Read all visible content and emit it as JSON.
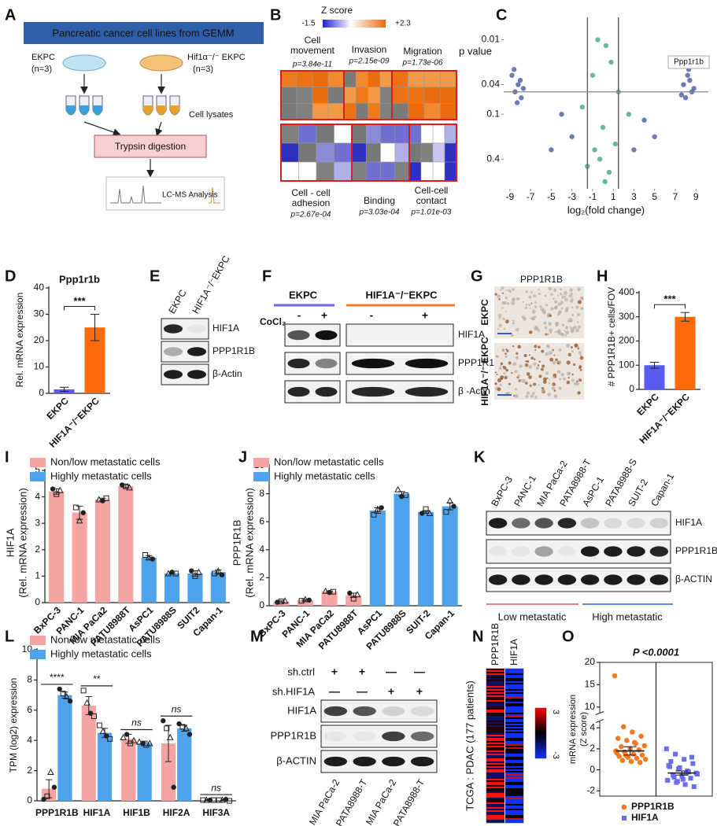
{
  "letters": [
    "A",
    "B",
    "C",
    "D",
    "E",
    "F",
    "G",
    "H",
    "I",
    "J",
    "K",
    "L",
    "M",
    "N",
    "O"
  ],
  "panel_a": {
    "title": "Pancreatic cancer cell lines from GEMM",
    "group1": "EKPC",
    "n1": "(n=3)",
    "group2": "Hif1α⁻/⁻ EKPC",
    "n2": "(n=3)",
    "step1": "Cell lysates",
    "step2": "Trypsin digestion",
    "step3": "LC-MS Analysis"
  },
  "panel_b": {
    "scale_title": "Z score",
    "scale_min": "-1.5",
    "scale_max": "+2.3",
    "terms": [
      {
        "lines": [
          "Cell",
          "movement"
        ],
        "p": "p=3.84e-11"
      },
      {
        "lines": [
          "Invasion"
        ],
        "p": "p=2.15e-09"
      },
      {
        "lines": [
          "Migration"
        ],
        "p": "p=1.73e-06"
      },
      {
        "lines": [
          "Cell - cell",
          "adhesion"
        ],
        "p": "p=2.67e-04"
      },
      {
        "lines": [
          "Binding"
        ],
        "p": "p=3.03e-04"
      },
      {
        "lines": [
          "Cell-cell",
          "contact"
        ],
        "p": "p=1.01e-03"
      }
    ]
  },
  "panel_e": {
    "lanes": [
      "EKPC",
      "HIF1A⁻/⁻EKPC"
    ],
    "bands": [
      "HIF1A",
      "PPP1R1B",
      "β-Actin"
    ]
  },
  "panel_f": {
    "groups": [
      "EKPC",
      "HIF1A⁻/⁻EKPC"
    ],
    "treatment": "CoCl₂",
    "signs": [
      "-",
      "+",
      "-",
      "+"
    ],
    "bands": [
      "HIF1A",
      "PPP1R1B",
      "β -Actin"
    ]
  },
  "panel_g": {
    "title": "PPP1R1B",
    "rows": [
      "EKPC",
      "HIF1A⁻/⁻ EKPC"
    ]
  },
  "panel_k": {
    "lanes": [
      "BxPC-3",
      "PANC-1",
      "MIA PaCa-2",
      "PATA8988-T",
      "AsPC-1",
      "PATA8988-S",
      "SUIT-2",
      "Capan-1"
    ],
    "bands": [
      "HIF1A",
      "PPP1R1B",
      "β-ACTIN"
    ],
    "groups": [
      "Low metastatic",
      "High metastatic"
    ]
  },
  "panel_m": {
    "conditions": [
      {
        "name": "sh.ctrl",
        "signs": [
          "+",
          "+",
          "—",
          "—"
        ]
      },
      {
        "name": "sh.HIF1A",
        "signs": [
          "—",
          "—",
          "+",
          "+"
        ]
      }
    ],
    "bands": [
      "HIF1A",
      "PPP1R1B",
      "β-ACTIN"
    ],
    "lanes": [
      "MIA PaCa-2",
      "PATA8988-T",
      "MIA PaCa-2",
      "PATA8988-T"
    ]
  },
  "panel_n": {
    "columns": [
      "PPP1R1B",
      "HIF1A"
    ],
    "label": "TCGA : PDAC (177 patients)",
    "scale_max": "3",
    "scale_min": "-3"
  },
  "chart_data": [
    {
      "type": "scatter",
      "ylabel": "p value",
      "xlabel": "log₂(fold change)",
      "color": "#3b4f9a",
      "log_y": true,
      "y_inverted": true,
      "x": [
        -8.8,
        -8.5,
        -8.2,
        -7.9,
        -8.6,
        -8.0,
        -8.3,
        -7.7,
        7.8,
        8.2,
        8.6,
        8.0,
        8.4,
        8.8,
        7.6,
        8.3,
        -0.5,
        0.3,
        0.8,
        -1,
        1.5,
        -2,
        2.5,
        -3,
        3,
        0,
        -0.3,
        0.6,
        -1.5,
        1.2,
        -4,
        4,
        0.2,
        -0.8,
        5,
        -5
      ],
      "y": [
        0.03,
        0.05,
        0.04,
        0.06,
        0.025,
        0.035,
        0.07,
        0.045,
        0.04,
        0.03,
        0.05,
        0.06,
        0.035,
        0.045,
        0.055,
        0.025,
        0.01,
        0.012,
        0.02,
        0.03,
        0.05,
        0.08,
        0.1,
        0.2,
        0.3,
        0.15,
        0.4,
        0.6,
        0.5,
        0.25,
        0.1,
        0.12,
        0.8,
        0.3,
        0.2,
        0.3
      ],
      "xlim": [
        -9.6,
        10.2
      ],
      "xticks": [
        -9,
        -7,
        -5,
        -3,
        -1,
        1,
        3,
        5,
        7,
        9
      ],
      "ylim": [
        0.005,
        1
      ],
      "yticks": [
        0.01,
        0.04,
        0.1,
        0.4
      ],
      "vlines": [
        -1.5,
        1.5
      ],
      "hline": 0.05,
      "annotation": {
        "text": "Ppp1r1b",
        "x": 8.3,
        "y": 0.02
      }
    },
    {
      "type": "bar",
      "title": "Ppp1r1b",
      "ylabel": "Rel. mRNA expression",
      "categories": [
        "EKPC",
        "HIF1A⁻/⁻EKPC"
      ],
      "values": [
        1.5,
        25
      ],
      "errors": [
        0.8,
        5
      ],
      "colors": [
        "#5b5bf2",
        "#ff6a0d"
      ],
      "ylim": [
        0,
        40
      ],
      "yticks": [
        0,
        10,
        20,
        30,
        40
      ],
      "annotation": "***"
    },
    {
      "type": "bar",
      "ylabel": "# PPP1R1B+ cells/FOV",
      "categories": [
        "EKPC",
        "HIF1A⁻/⁻EKPC"
      ],
      "values": [
        100,
        300
      ],
      "errors": [
        12,
        18
      ],
      "colors": [
        "#5b5bf2",
        "#ff6a0d"
      ],
      "ylim": [
        0,
        400
      ],
      "yticks": [
        0,
        100,
        200,
        300,
        400
      ],
      "annotation": "***"
    },
    {
      "type": "bar",
      "ylabel": [
        "HIF1A",
        "(Rel. mRNA expression)"
      ],
      "categories": [
        "BxPC-3",
        "PANC-1",
        "MIA PaCa2",
        "PATU8988T",
        "AsPC1",
        "PATU8988S",
        "SUIT2",
        "Capan-1"
      ],
      "series": [
        {
          "name": "Non/low metastatic cells",
          "color": "#f5a3a3",
          "values": [
            4.2,
            3.4,
            3.9,
            4.4,
            null,
            null,
            null,
            null
          ],
          "errors": [
            0.1,
            0.25,
            0.05,
            0.05,
            null,
            null,
            null,
            null
          ],
          "points": [
            [
              4.3,
              4.1,
              4.25
            ],
            [
              3.6,
              3.1,
              3.4
            ],
            [
              3.9,
              3.85,
              3.95
            ],
            [
              4.45,
              4.4,
              4.35
            ],
            null,
            null,
            null,
            null
          ]
        },
        {
          "name": "Highly metastatic cells",
          "color": "#4fa3ea",
          "values": [
            null,
            null,
            null,
            null,
            1.7,
            1.1,
            1.1,
            1.15
          ],
          "errors": [
            null,
            null,
            null,
            null,
            0.08,
            0.03,
            0.1,
            0.08
          ],
          "points": [
            null,
            null,
            null,
            null,
            [
              1.8,
              1.7,
              1.65
            ],
            [
              1.1,
              1.15,
              1.1
            ],
            [
              1.2,
              1.0,
              1.15
            ],
            [
              1.1,
              1.2,
              1.05
            ]
          ]
        }
      ],
      "ylim": [
        0,
        5
      ],
      "yticks": [
        0,
        1,
        2,
        3,
        4,
        5
      ]
    },
    {
      "type": "bar",
      "ylabel": [
        "PPP1R1B",
        "(Rel. mRNA expression)"
      ],
      "categories": [
        "BxPC-3",
        "PANC-1",
        "MIA PaCa2",
        "PATU8988T",
        "AsPC1",
        "PATU8988S",
        "SUIT-2",
        "Capan-1"
      ],
      "series": [
        {
          "name": "Non/low metastatic cells",
          "color": "#f5a3a3",
          "values": [
            0.3,
            0.4,
            1.0,
            0.75,
            null,
            null,
            null,
            null
          ],
          "errors": [
            0.05,
            0.05,
            0.05,
            0.15,
            null,
            null,
            null,
            null
          ],
          "points": [
            [
              0.25,
              0.3,
              0.35
            ],
            [
              0.35,
              0.45,
              0.4
            ],
            [
              1.05,
              0.95,
              1.0
            ],
            [
              0.9,
              0.5,
              0.8
            ],
            null,
            null,
            null,
            null
          ]
        },
        {
          "name": "Highly metastatic cells",
          "color": "#4fa3ea",
          "values": [
            null,
            null,
            null,
            null,
            6.8,
            8.0,
            6.7,
            7.1
          ],
          "errors": [
            null,
            null,
            null,
            null,
            0.2,
            0.15,
            0.1,
            0.25
          ],
          "points": [
            null,
            null,
            null,
            null,
            [
              6.5,
              6.9,
              7.0
            ],
            [
              8.3,
              7.8,
              7.9
            ],
            [
              6.6,
              6.9,
              6.6
            ],
            [
              6.7,
              7.5,
              7.1
            ]
          ]
        }
      ],
      "ylim": [
        0,
        10
      ],
      "yticks": [
        0,
        2,
        4,
        6,
        8,
        10
      ]
    },
    {
      "type": "bar",
      "ylabel": "TPM (log2) expression",
      "categories": [
        "PPP1R1B",
        "HIF1A",
        "HIF1B",
        "HIF2A",
        "HIF3A"
      ],
      "series": [
        {
          "name": "Non/low metastatic cells",
          "color": "#f5a3a3",
          "values": [
            0.8,
            6.3,
            4.1,
            3.8,
            0.05
          ],
          "errors": [
            0.6,
            0.6,
            0.3,
            1.2,
            0.03
          ],
          "points": [
            [
              0.1,
              0.3,
              1.9,
              0.9
            ],
            [
              7.3,
              6.5,
              5.8,
              5.6
            ],
            [
              4.2,
              4.4,
              3.8,
              4.0
            ],
            [
              5.3,
              4.8,
              4.2,
              0.9
            ],
            [
              0.05,
              0.05,
              0.05,
              0.05
            ]
          ]
        },
        {
          "name": "Highly metastatic cells",
          "color": "#4fa3ea",
          "values": [
            7.0,
            4.5,
            3.8,
            4.8,
            0.05
          ],
          "errors": [
            0.2,
            0.3,
            0.15,
            0.2,
            0.03
          ],
          "points": [
            [
              7.4,
              7.1,
              6.9,
              6.6
            ],
            [
              5.0,
              4.6,
              4.3,
              4.1
            ],
            [
              3.9,
              3.8,
              3.7,
              3.8
            ],
            [
              5.1,
              4.9,
              4.8,
              4.4
            ],
            [
              0.05,
              0.05,
              0.1,
              0.0
            ]
          ]
        }
      ],
      "annotations": [
        "****",
        "**",
        "ns",
        "ns",
        "ns"
      ],
      "ylim": [
        0,
        10
      ],
      "yticks": [
        0,
        2,
        4,
        6,
        8,
        10
      ]
    },
    {
      "type": "strip",
      "title": "P <0.0001",
      "ylabel": [
        "mRNA expression",
        "(Z score)"
      ],
      "series": [
        {
          "name": "PPP1R1B",
          "color": "#f47a1f",
          "marker": "circle",
          "values": [
            17,
            4.1,
            3.6,
            3.2,
            3.0,
            2.8,
            2.5,
            2.3,
            2.2,
            2.0,
            1.9,
            1.8,
            1.7,
            1.5,
            1.4,
            1.3,
            1.2,
            1.1,
            1.0,
            0.9,
            0.8,
            0.7,
            1.6,
            1.4,
            2.6
          ],
          "mean": 1.8,
          "error": 0.4
        },
        {
          "name": "HIF1A",
          "color": "#6b6bf0",
          "marker": "square",
          "values": [
            2.0,
            1.5,
            1.0,
            0.6,
            0.3,
            0.1,
            -0.1,
            -0.3,
            -0.5,
            -0.6,
            -0.8,
            -1.0,
            -1.2,
            -1.4,
            -1.6,
            0.8,
            0.2,
            -0.2,
            -0.4,
            -0.7,
            -0.9,
            1.2,
            0.4,
            -1.1,
            -0.3
          ],
          "mean": -0.3,
          "error": 0.2
        }
      ],
      "ylim": [
        -2.5,
        20
      ],
      "yticks": [
        -2,
        0,
        2,
        4,
        10,
        15,
        20
      ],
      "axis_break": [
        4.5,
        9
      ]
    }
  ]
}
